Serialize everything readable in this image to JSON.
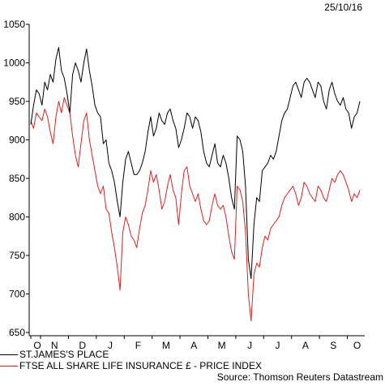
{
  "date_label": "25/10/16",
  "source": "Source: Thomson Reuters Datastream",
  "chart_data": {
    "type": "line",
    "ylim": [
      650,
      1050
    ],
    "yticks": [
      650,
      700,
      750,
      800,
      850,
      900,
      950,
      1000,
      1050
    ],
    "x_ticks": [
      "O",
      "N",
      "D",
      "J",
      "F",
      "M",
      "A",
      "M",
      "J",
      "J",
      "A",
      "S",
      "O"
    ],
    "x_tick_positions": [
      0.0,
      0.35,
      1.35,
      2.35,
      3.35,
      4.35,
      5.35,
      6.35,
      7.35,
      8.35,
      9.35,
      10.35,
      11.35
    ],
    "xlim": [
      0.0,
      11.8
    ],
    "grid": false,
    "legend": "bottom",
    "series": [
      {
        "name": "ST.JAMES'S PLACE",
        "color": "#000000",
        "points": [
          [
            0.0,
            920
          ],
          [
            0.1,
            945
          ],
          [
            0.2,
            965
          ],
          [
            0.3,
            960
          ],
          [
            0.4,
            945
          ],
          [
            0.5,
            975
          ],
          [
            0.6,
            965
          ],
          [
            0.7,
            985
          ],
          [
            0.8,
            975
          ],
          [
            0.9,
            1005
          ],
          [
            1.0,
            1020
          ],
          [
            1.1,
            990
          ],
          [
            1.2,
            980
          ],
          [
            1.3,
            960
          ],
          [
            1.4,
            935
          ],
          [
            1.5,
            985
          ],
          [
            1.6,
            1000
          ],
          [
            1.7,
            990
          ],
          [
            1.8,
            975
          ],
          [
            1.9,
            1000
          ],
          [
            2.0,
            1018
          ],
          [
            2.1,
            990
          ],
          [
            2.2,
            970
          ],
          [
            2.3,
            945
          ],
          [
            2.4,
            935
          ],
          [
            2.5,
            930
          ],
          [
            2.6,
            895
          ],
          [
            2.7,
            900
          ],
          [
            2.8,
            870
          ],
          [
            2.9,
            860
          ],
          [
            3.0,
            845
          ],
          [
            3.1,
            820
          ],
          [
            3.2,
            800
          ],
          [
            3.3,
            845
          ],
          [
            3.4,
            875
          ],
          [
            3.5,
            885
          ],
          [
            3.6,
            870
          ],
          [
            3.7,
            855
          ],
          [
            3.8,
            855
          ],
          [
            3.9,
            860
          ],
          [
            4.0,
            870
          ],
          [
            4.1,
            885
          ],
          [
            4.2,
            910
          ],
          [
            4.3,
            930
          ],
          [
            4.4,
            905
          ],
          [
            4.5,
            915
          ],
          [
            4.6,
            935
          ],
          [
            4.7,
            925
          ],
          [
            4.8,
            920
          ],
          [
            4.9,
            935
          ],
          [
            5.0,
            940
          ],
          [
            5.1,
            925
          ],
          [
            5.2,
            915
          ],
          [
            5.3,
            890
          ],
          [
            5.4,
            900
          ],
          [
            5.5,
            915
          ],
          [
            5.6,
            935
          ],
          [
            5.7,
            930
          ],
          [
            5.8,
            915
          ],
          [
            5.9,
            930
          ],
          [
            6.0,
            925
          ],
          [
            6.1,
            910
          ],
          [
            6.2,
            885
          ],
          [
            6.3,
            870
          ],
          [
            6.4,
            865
          ],
          [
            6.5,
            880
          ],
          [
            6.6,
            895
          ],
          [
            6.7,
            870
          ],
          [
            6.8,
            865
          ],
          [
            6.9,
            880
          ],
          [
            7.0,
            870
          ],
          [
            7.1,
            850
          ],
          [
            7.2,
            825
          ],
          [
            7.3,
            810
          ],
          [
            7.4,
            905
          ],
          [
            7.5,
            900
          ],
          [
            7.6,
            885
          ],
          [
            7.7,
            840
          ],
          [
            7.8,
            745
          ],
          [
            7.9,
            720
          ],
          [
            8.0,
            790
          ],
          [
            8.1,
            825
          ],
          [
            8.2,
            820
          ],
          [
            8.3,
            860
          ],
          [
            8.4,
            865
          ],
          [
            8.5,
            870
          ],
          [
            8.6,
            880
          ],
          [
            8.7,
            875
          ],
          [
            8.8,
            885
          ],
          [
            8.9,
            905
          ],
          [
            9.0,
            925
          ],
          [
            9.1,
            935
          ],
          [
            9.2,
            940
          ],
          [
            9.3,
            955
          ],
          [
            9.4,
            970
          ],
          [
            9.5,
            975
          ],
          [
            9.6,
            965
          ],
          [
            9.7,
            955
          ],
          [
            9.8,
            975
          ],
          [
            9.9,
            980
          ],
          [
            10.0,
            975
          ],
          [
            10.1,
            965
          ],
          [
            10.2,
            955
          ],
          [
            10.3,
            975
          ],
          [
            10.4,
            970
          ],
          [
            10.5,
            950
          ],
          [
            10.6,
            940
          ],
          [
            10.7,
            965
          ],
          [
            10.8,
            975
          ],
          [
            10.9,
            960
          ],
          [
            11.0,
            950
          ],
          [
            11.1,
            945
          ],
          [
            11.2,
            955
          ],
          [
            11.3,
            940
          ],
          [
            11.4,
            935
          ],
          [
            11.5,
            915
          ],
          [
            11.6,
            930
          ],
          [
            11.7,
            935
          ],
          [
            11.8,
            950
          ]
        ]
      },
      {
        "name": "FTSE ALL SHARE LIFE INSURANCE £ - PRICE INDEX",
        "color": "#e0201b",
        "points": [
          [
            0.0,
            925
          ],
          [
            0.1,
            915
          ],
          [
            0.2,
            935
          ],
          [
            0.3,
            930
          ],
          [
            0.4,
            925
          ],
          [
            0.5,
            940
          ],
          [
            0.6,
            930
          ],
          [
            0.7,
            910
          ],
          [
            0.8,
            895
          ],
          [
            0.9,
            930
          ],
          [
            1.0,
            950
          ],
          [
            1.1,
            935
          ],
          [
            1.2,
            955
          ],
          [
            1.3,
            945
          ],
          [
            1.4,
            935
          ],
          [
            1.5,
            905
          ],
          [
            1.6,
            880
          ],
          [
            1.7,
            865
          ],
          [
            1.8,
            895
          ],
          [
            1.9,
            925
          ],
          [
            2.0,
            935
          ],
          [
            2.1,
            900
          ],
          [
            2.2,
            880
          ],
          [
            2.3,
            860
          ],
          [
            2.4,
            840
          ],
          [
            2.5,
            830
          ],
          [
            2.6,
            840
          ],
          [
            2.7,
            810
          ],
          [
            2.8,
            805
          ],
          [
            2.9,
            780
          ],
          [
            3.0,
            760
          ],
          [
            3.1,
            735
          ],
          [
            3.2,
            705
          ],
          [
            3.3,
            780
          ],
          [
            3.4,
            800
          ],
          [
            3.5,
            790
          ],
          [
            3.6,
            775
          ],
          [
            3.7,
            770
          ],
          [
            3.8,
            760
          ],
          [
            3.9,
            785
          ],
          [
            4.0,
            805
          ],
          [
            4.1,
            815
          ],
          [
            4.2,
            835
          ],
          [
            4.3,
            860
          ],
          [
            4.4,
            845
          ],
          [
            4.5,
            855
          ],
          [
            4.6,
            835
          ],
          [
            4.7,
            810
          ],
          [
            4.8,
            820
          ],
          [
            4.9,
            840
          ],
          [
            5.0,
            855
          ],
          [
            5.1,
            835
          ],
          [
            5.2,
            825
          ],
          [
            5.3,
            790
          ],
          [
            5.4,
            830
          ],
          [
            5.5,
            860
          ],
          [
            5.6,
            865
          ],
          [
            5.7,
            840
          ],
          [
            5.8,
            830
          ],
          [
            5.9,
            820
          ],
          [
            6.0,
            830
          ],
          [
            6.1,
            810
          ],
          [
            6.2,
            795
          ],
          [
            6.3,
            790
          ],
          [
            6.4,
            795
          ],
          [
            6.5,
            815
          ],
          [
            6.6,
            830
          ],
          [
            6.7,
            815
          ],
          [
            6.8,
            810
          ],
          [
            6.9,
            815
          ],
          [
            7.0,
            800
          ],
          [
            7.1,
            775
          ],
          [
            7.2,
            755
          ],
          [
            7.3,
            745
          ],
          [
            7.4,
            840
          ],
          [
            7.5,
            835
          ],
          [
            7.6,
            820
          ],
          [
            7.7,
            780
          ],
          [
            7.8,
            700
          ],
          [
            7.9,
            665
          ],
          [
            8.0,
            725
          ],
          [
            8.1,
            740
          ],
          [
            8.2,
            735
          ],
          [
            8.3,
            760
          ],
          [
            8.4,
            775
          ],
          [
            8.5,
            770
          ],
          [
            8.6,
            785
          ],
          [
            8.7,
            790
          ],
          [
            8.8,
            795
          ],
          [
            8.9,
            800
          ],
          [
            9.0,
            815
          ],
          [
            9.1,
            825
          ],
          [
            9.2,
            830
          ],
          [
            9.3,
            835
          ],
          [
            9.4,
            840
          ],
          [
            9.5,
            830
          ],
          [
            9.6,
            815
          ],
          [
            9.7,
            825
          ],
          [
            9.8,
            845
          ],
          [
            9.9,
            840
          ],
          [
            10.0,
            830
          ],
          [
            10.1,
            825
          ],
          [
            10.2,
            820
          ],
          [
            10.3,
            840
          ],
          [
            10.4,
            835
          ],
          [
            10.5,
            825
          ],
          [
            10.6,
            820
          ],
          [
            10.7,
            835
          ],
          [
            10.8,
            850
          ],
          [
            10.9,
            845
          ],
          [
            11.0,
            855
          ],
          [
            11.1,
            860
          ],
          [
            11.2,
            855
          ],
          [
            11.3,
            845
          ],
          [
            11.4,
            835
          ],
          [
            11.5,
            820
          ],
          [
            11.6,
            830
          ],
          [
            11.7,
            825
          ],
          [
            11.8,
            835
          ]
        ]
      }
    ]
  }
}
